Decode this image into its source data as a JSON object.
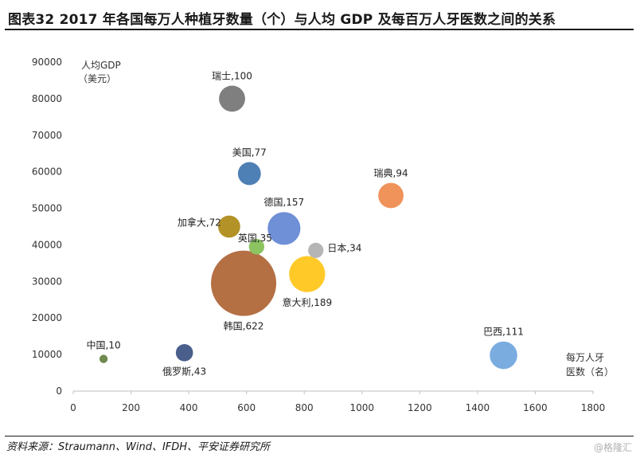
{
  "header": {
    "title": "图表32    2017 年各国每万人种植牙数量（个）与人均 GDP 及每百万人牙医数之间的关系"
  },
  "footer": {
    "source": "资料来源：Straumann、Wind、IFDH、平安证券研究所",
    "watermark": "@格隆汇"
  },
  "chart_data": {
    "type": "bubble",
    "title": "2017 年各国每万人种植牙数量（个）与人均 GDP 及每百万人牙医数之间的关系",
    "xlabel_line1": "每万人牙",
    "xlabel_line2": "医数（名）",
    "ylabel_line1": "人均GDP",
    "ylabel_line2": "（美元）",
    "xlim": [
      0,
      1800
    ],
    "ylim": [
      0,
      90000
    ],
    "x_ticks": [
      0,
      200,
      400,
      600,
      800,
      1000,
      1200,
      1400,
      1600,
      1800
    ],
    "y_ticks": [
      0,
      10000,
      20000,
      30000,
      40000,
      50000,
      60000,
      70000,
      80000,
      90000
    ],
    "points": [
      {
        "name": "瑞士",
        "label": "瑞士,100",
        "x": 550,
        "y": 80000,
        "size": 100,
        "color": "#7f7f7f",
        "label_pos": "above"
      },
      {
        "name": "美国",
        "label": "美国,77",
        "x": 610,
        "y": 59500,
        "size": 77,
        "color": "#4e7fb5",
        "label_pos": "above"
      },
      {
        "name": "瑞典",
        "label": "瑞典,94",
        "x": 1100,
        "y": 53500,
        "size": 94,
        "color": "#f0935a",
        "label_pos": "above"
      },
      {
        "name": "德国",
        "label": "德国,157",
        "x": 730,
        "y": 44500,
        "size": 157,
        "color": "#6f8fd6",
        "label_pos": "above"
      },
      {
        "name": "加拿大",
        "label": "加拿大,72",
        "x": 540,
        "y": 45000,
        "size": 72,
        "color": "#b39227",
        "label_pos": "left"
      },
      {
        "name": "英国",
        "label": "英国,35",
        "x": 635,
        "y": 39500,
        "size": 35,
        "color": "#8cc462",
        "label_pos": "above-left"
      },
      {
        "name": "日本",
        "label": "日本,34",
        "x": 840,
        "y": 38500,
        "size": 34,
        "color": "#b5b5b5",
        "label_pos": "right"
      },
      {
        "name": "意大利",
        "label": "意大利,189",
        "x": 810,
        "y": 32000,
        "size": 189,
        "color": "#ffc928",
        "label_pos": "below"
      },
      {
        "name": "韩国",
        "label": "韩国,622",
        "x": 590,
        "y": 29500,
        "size": 622,
        "color": "#b46f43",
        "label_pos": "below"
      },
      {
        "name": "中国",
        "label": "中国,10",
        "x": 105,
        "y": 8800,
        "size": 10,
        "color": "#6f8a4f",
        "label_pos": "above"
      },
      {
        "name": "俄罗斯",
        "label": "俄罗斯,43",
        "x": 385,
        "y": 10500,
        "size": 43,
        "color": "#4b5f8c",
        "label_pos": "below"
      },
      {
        "name": "巴西",
        "label": "巴西,111",
        "x": 1490,
        "y": 9800,
        "size": 111,
        "color": "#7aace0",
        "label_pos": "above"
      }
    ]
  }
}
